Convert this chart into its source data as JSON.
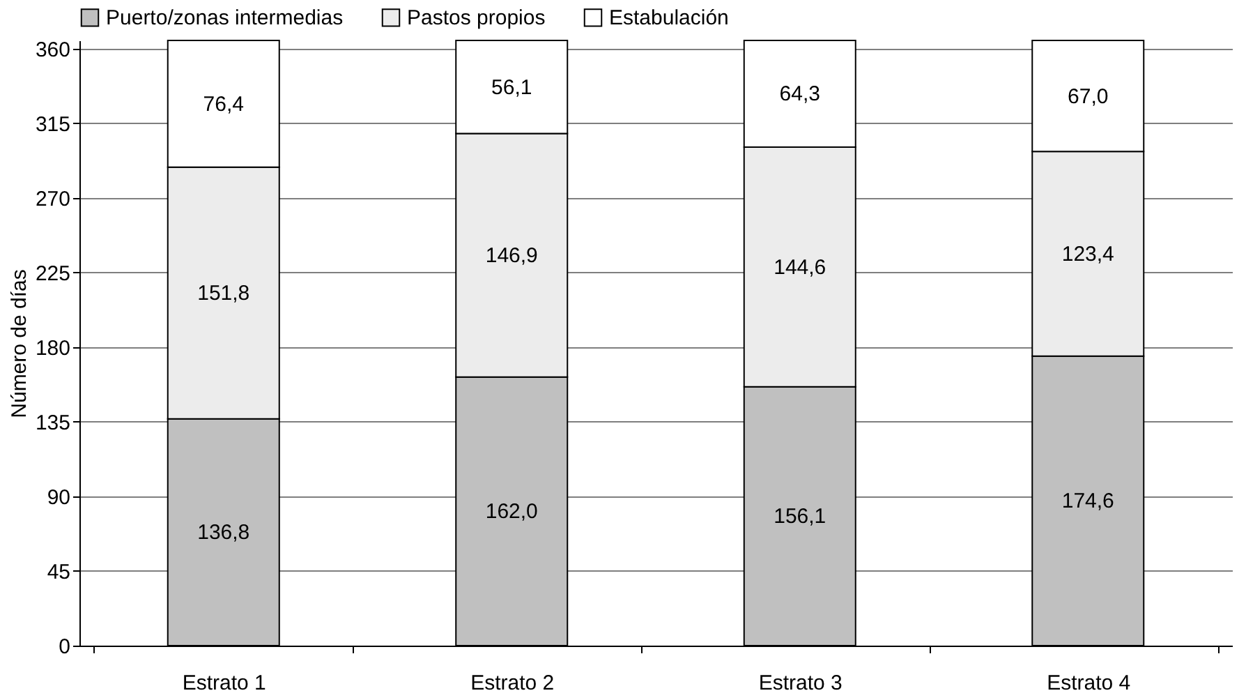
{
  "chart_data": {
    "type": "bar",
    "stacked": true,
    "ylabel": "Número de días",
    "categories": [
      "Estrato 1",
      "Estrato 2",
      "Estrato 3",
      "Estrato 4"
    ],
    "series": [
      {
        "name": "Puerto/zonas intermedias",
        "color": "#c0c0c0",
        "values": [
          136.8,
          162.0,
          156.1,
          174.6
        ],
        "value_labels": [
          "136,8",
          "162,0",
          "156,1",
          "174,6"
        ]
      },
      {
        "name": "Pastos propios",
        "color": "#ececec",
        "values": [
          151.8,
          146.9,
          144.6,
          123.4
        ],
        "value_labels": [
          "151,8",
          "146,9",
          "144,6",
          "123,4"
        ]
      },
      {
        "name": "Estabulación",
        "color": "#ffffff",
        "values": [
          76.4,
          56.1,
          64.3,
          67.0
        ],
        "value_labels": [
          "76,4",
          "56,1",
          "64,3",
          "67,0"
        ]
      }
    ],
    "ylim": [
      0,
      365
    ],
    "yticks": [
      0,
      45,
      90,
      135,
      180,
      225,
      270,
      315,
      360
    ],
    "grid": "y",
    "legend": "top"
  }
}
